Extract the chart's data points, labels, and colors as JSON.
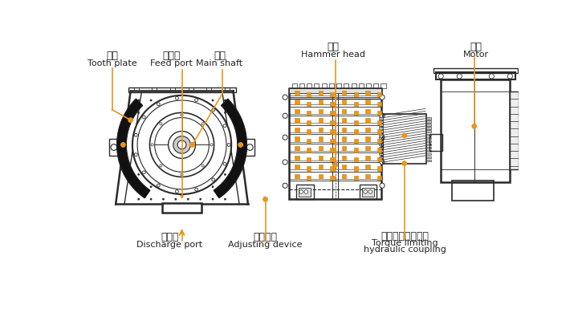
{
  "bg_color": "#ffffff",
  "line_color": "#2a2a2a",
  "orange_color": "#E8961E",
  "labels": {
    "tooth_plate_cn": "齿板",
    "tooth_plate_en": "Tooth plate",
    "feed_port_cn": "进料口",
    "feed_port_en": "Feed port",
    "main_shaft_cn": "主轴",
    "main_shaft_en": "Main shaft",
    "hammer_head_cn": "锤头",
    "hammer_head_en": "Hammer head",
    "motor_cn": "电机",
    "motor_en": "Motor",
    "discharge_port_cn": "出料口",
    "discharge_port_en": "Discharge port",
    "adjusting_cn": "调整装置",
    "adjusting_en": "Adjusting device",
    "torque_cn": "限矩性液力偶合器",
    "torque_en1": "Torque limiting",
    "torque_en2": "hydraulic coupling"
  }
}
